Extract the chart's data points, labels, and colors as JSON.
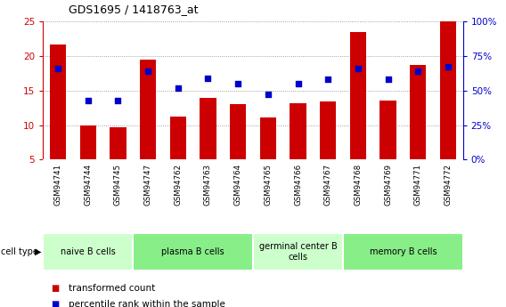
{
  "title": "GDS1695 / 1418763_at",
  "samples": [
    "GSM94741",
    "GSM94744",
    "GSM94745",
    "GSM94747",
    "GSM94762",
    "GSM94763",
    "GSM94764",
    "GSM94765",
    "GSM94766",
    "GSM94767",
    "GSM94768",
    "GSM94769",
    "GSM94771",
    "GSM94772"
  ],
  "transformed_counts": [
    21.7,
    9.9,
    9.7,
    19.5,
    11.2,
    14.0,
    13.0,
    11.1,
    13.2,
    13.4,
    23.5,
    13.5,
    18.7,
    25.0
  ],
  "percentile_ranks": [
    66,
    43,
    43,
    64,
    52,
    59,
    55,
    47,
    55,
    58,
    66,
    58,
    64,
    67
  ],
  "ylim_left": [
    5,
    25
  ],
  "ylim_right": [
    0,
    100
  ],
  "yticks_left": [
    5,
    10,
    15,
    20,
    25
  ],
  "yticks_right": [
    0,
    25,
    50,
    75,
    100
  ],
  "yticklabels_right": [
    "0%",
    "25%",
    "50%",
    "75%",
    "100%"
  ],
  "bar_color": "#cc0000",
  "dot_color": "#0000cc",
  "ylabel_left_color": "#cc0000",
  "ylabel_right_color": "#0000cc",
  "cell_groups": [
    {
      "label": "naive B cells",
      "start": 0,
      "end": 3,
      "color": "#ccffcc"
    },
    {
      "label": "plasma B cells",
      "start": 3,
      "end": 7,
      "color": "#88ee88"
    },
    {
      "label": "germinal center B\ncells",
      "start": 7,
      "end": 10,
      "color": "#ccffcc"
    },
    {
      "label": "memory B cells",
      "start": 10,
      "end": 14,
      "color": "#88ee88"
    }
  ],
  "sample_bg_color": "#c8c8c8",
  "plot_bg_color": "#ffffff",
  "grid_color": "#888888",
  "legend_items": [
    {
      "label": "transformed count",
      "color": "#cc0000"
    },
    {
      "label": "percentile rank within the sample",
      "color": "#0000cc"
    }
  ]
}
